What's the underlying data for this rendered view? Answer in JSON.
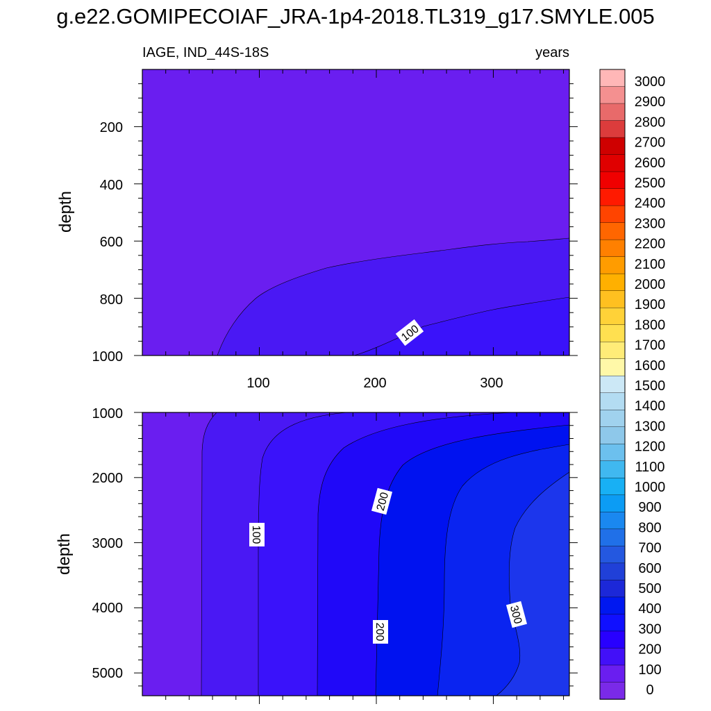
{
  "chart_data": [
    {
      "type": "contour",
      "title": "g.e22.GOMIPECOIAF_JRA-1p4-2018.TL319_g17.SMYLE.005",
      "left_string": "IAGE, IND_44S-18S",
      "right_string": "years",
      "xlabel": "",
      "ylabel": "depth",
      "xlim": [
        0,
        365
      ],
      "ylim": [
        1000,
        0
      ],
      "x_ticks": [
        100,
        200,
        300
      ],
      "y_ticks": [
        200,
        400,
        600,
        800,
        1000
      ],
      "contour_levels": [
        0,
        50,
        100
      ],
      "contour_labels": [
        "100"
      ],
      "values_note_upper": "age 0-50 years above ~600-800 m; 50-100 years below; >100 years near bottom right"
    },
    {
      "type": "contour",
      "xlabel": "",
      "ylabel": "depth",
      "xlim": [
        0,
        365
      ],
      "ylim": [
        5350,
        1000
      ],
      "x_ticks": [
        100,
        200,
        300
      ],
      "y_ticks": [
        1000,
        2000,
        3000,
        4000,
        5000
      ],
      "contour_levels": [
        0,
        50,
        100,
        150,
        200,
        250,
        300
      ],
      "contour_labels": [
        "100",
        "200",
        "200",
        "300"
      ]
    }
  ],
  "colorbar": {
    "labels": [
      "3000",
      "2900",
      "2800",
      "2700",
      "2600",
      "2500",
      "2400",
      "2300",
      "2200",
      "2100",
      "2000",
      "1900",
      "1800",
      "1700",
      "1600",
      "1500",
      "1400",
      "1300",
      "1200",
      "1100",
      "1000",
      "900",
      "800",
      "700",
      "600",
      "500",
      "400",
      "300",
      "200",
      "100",
      "0"
    ],
    "colors_top_to_bottom": [
      "#ffb7b7",
      "#f49090",
      "#e86a6a",
      "#dc3c3c",
      "#cf0000",
      "#e00000",
      "#f00000",
      "#ff1a00",
      "#ff4400",
      "#ff6600",
      "#ff8000",
      "#ff9c00",
      "#ffb000",
      "#ffc020",
      "#ffd238",
      "#ffe050",
      "#ffec78",
      "#fff8a8",
      "#cce8f6",
      "#b3dcf2",
      "#a0d2ee",
      "#8ec8ea",
      "#6cc0ee",
      "#40b8f0",
      "#18b0f4",
      "#0c9cf4",
      "#1a88f0",
      "#2070e8",
      "#2458e0",
      "#2040d8",
      "#1c28d8",
      "#0018f0",
      "#1010ff",
      "#2800ff",
      "#4210f8",
      "#6a1ef0",
      "#7a2ae8"
    ]
  }
}
